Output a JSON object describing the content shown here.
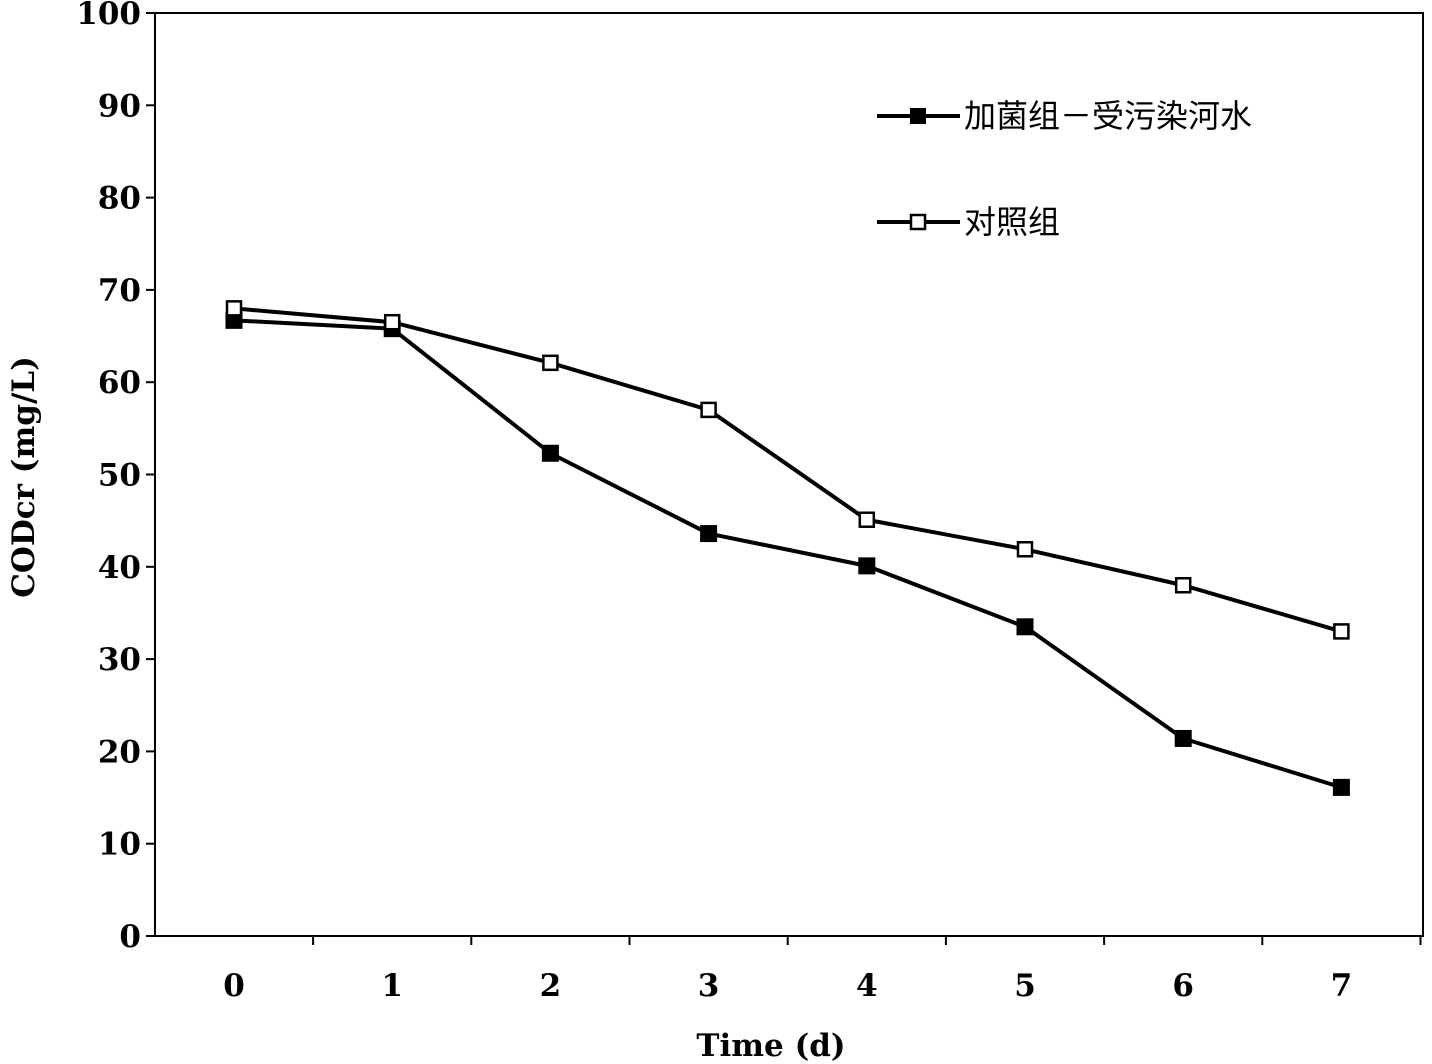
{
  "chart_data": {
    "type": "line",
    "title": "",
    "xlabel": "Time (d)",
    "ylabel": "CODcr (mg/L)",
    "x": [
      0,
      1,
      2,
      3,
      4,
      5,
      6,
      7
    ],
    "x_tick_labels": [
      "0",
      "1",
      "2",
      "3",
      "4",
      "5",
      "6",
      "7"
    ],
    "ylim": [
      0,
      100
    ],
    "y_ticks": [
      0,
      10,
      20,
      30,
      40,
      50,
      60,
      70,
      80,
      90,
      100
    ],
    "y_tick_labels": [
      "0",
      "10",
      "20",
      "30",
      "40",
      "50",
      "60",
      "70",
      "80",
      "90",
      "100"
    ],
    "grid": false,
    "legend_position": "top-right",
    "series": [
      {
        "name": "加菌组－受污染河水",
        "marker": "filled-square",
        "color": "#000000",
        "values": [
          66.7,
          65.8,
          52.3,
          43.6,
          40.1,
          33.5,
          21.4,
          16.1
        ]
      },
      {
        "name": "对照组",
        "marker": "open-square",
        "color": "#000000",
        "values": [
          68.0,
          66.5,
          62.1,
          57.0,
          45.1,
          41.9,
          38.0,
          33.0
        ]
      }
    ]
  }
}
